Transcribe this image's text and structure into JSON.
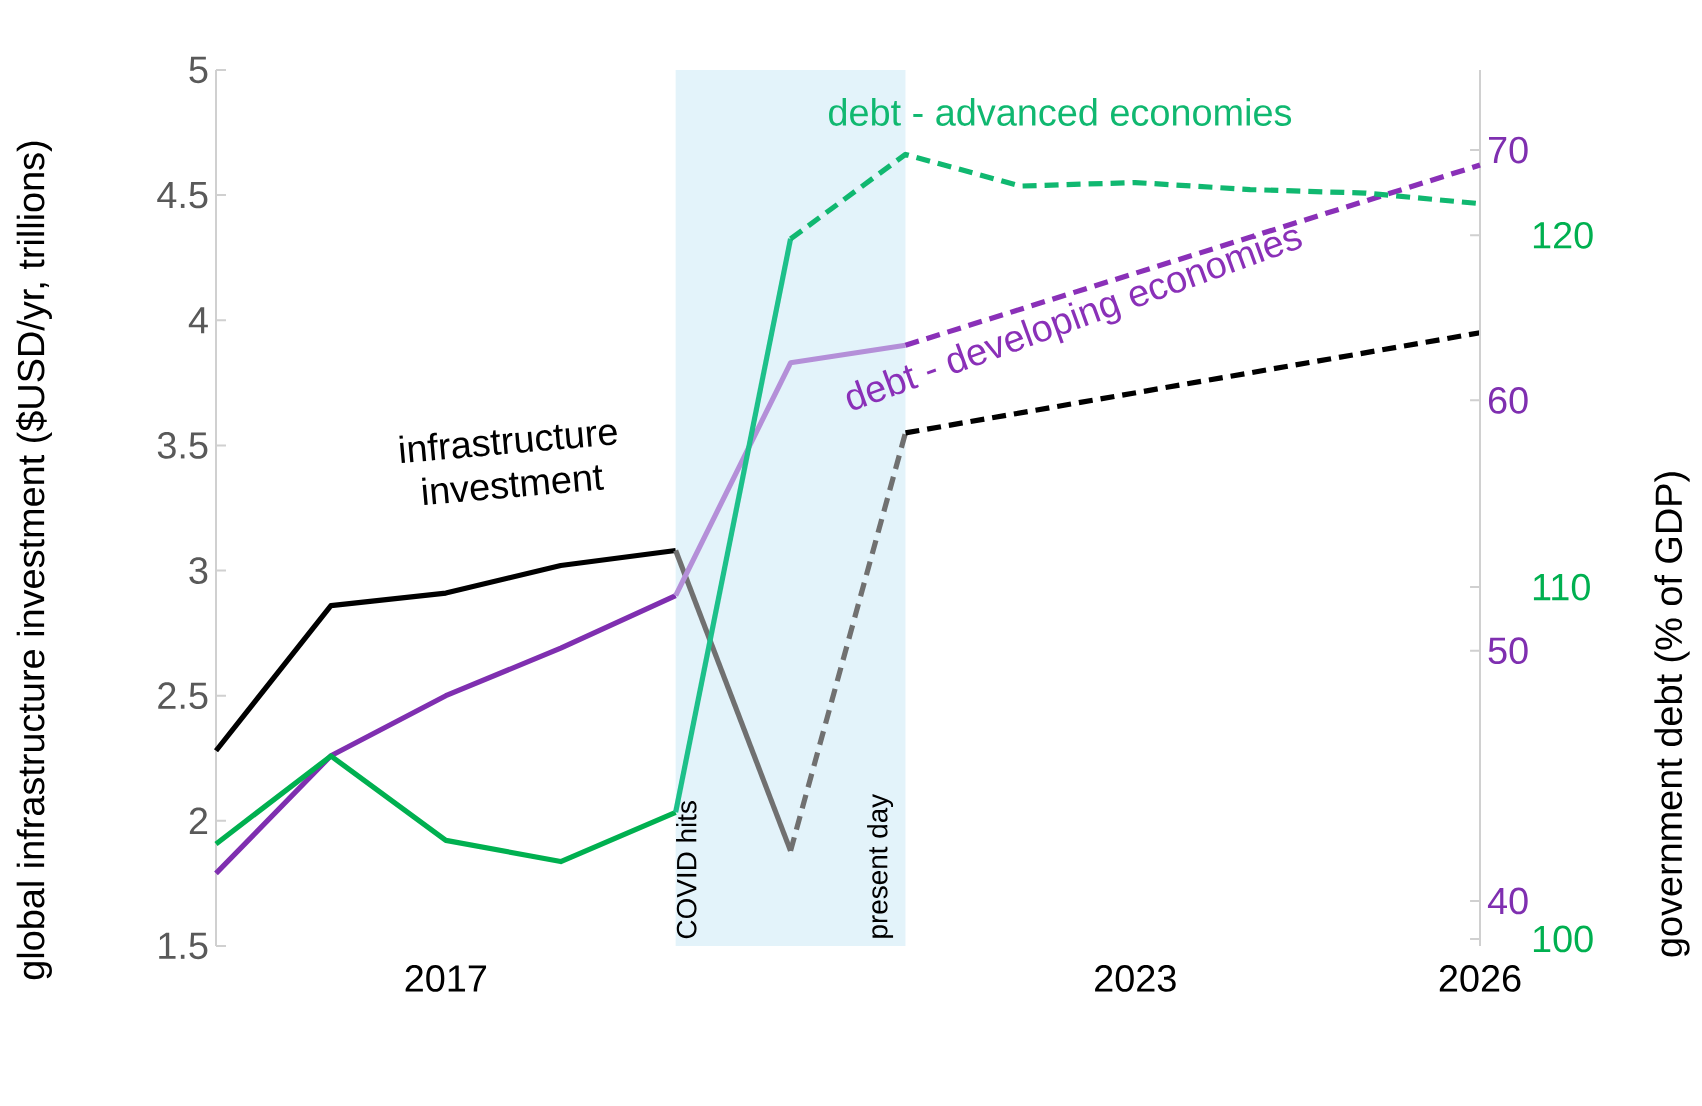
{
  "chart_data": {
    "type": "line",
    "ylabel": "global infrastructure investment ($USD/yr, trillions)",
    "y2label": "government debt (% of GDP)",
    "xlim": [
      2015,
      2026
    ],
    "xticks": [
      2017,
      2023,
      2026
    ],
    "ylim": [
      1.5,
      5
    ],
    "yticks": [
      1.5,
      2,
      2.5,
      3,
      3.5,
      4,
      4.5,
      5
    ],
    "y2lim": [
      38.2,
      73.2
    ],
    "y2ticks": [
      40,
      50,
      60,
      70
    ],
    "y3lim": [
      99.8,
      124.7
    ],
    "y3ticks": [
      100,
      110,
      120
    ],
    "bands": [
      {
        "axis": "x",
        "from": 2019,
        "to": 2021,
        "color": "#e3f3fa"
      }
    ],
    "annotations": [
      {
        "text": "COVID hits",
        "x": 2019
      },
      {
        "text": "present day",
        "x": 2021
      }
    ],
    "series": [
      {
        "name": "infrastructure investment",
        "color": "#000000",
        "x": [
          2015,
          2016,
          2017,
          2018,
          2019
        ],
        "values": [
          2.28,
          2.86,
          2.91,
          3.02,
          3.08
        ],
        "line_style": "solid"
      },
      {
        "color": "#707070",
        "x": [
          2019,
          2020
        ],
        "values": [
          3.08,
          1.88
        ],
        "line_style": "solid"
      },
      {
        "color": "#707070",
        "x": [
          2020,
          2021
        ],
        "values": [
          1.88,
          3.55
        ],
        "line_style": "dashed"
      },
      {
        "color": "#000000",
        "x": [
          2021,
          2026
        ],
        "values": [
          3.55,
          3.95
        ],
        "line_style": "dashed"
      },
      {
        "color": "#7f2fb0",
        "x": [
          2015,
          2016,
          2017,
          2018,
          2019
        ],
        "values": [
          41.1,
          45.8,
          48.2,
          50.1,
          52.2
        ],
        "line_style": "solid",
        "axis": "y2"
      },
      {
        "color": "#b48fd8",
        "x": [
          2019,
          2020,
          2021
        ],
        "values": [
          52.2,
          61.5,
          62.2
        ],
        "line_style": "solid",
        "axis": "y2"
      },
      {
        "name": "debt - developing economies",
        "color": "#8a30b8",
        "x": [
          2021,
          2026
        ],
        "values": [
          62.2,
          69.4
        ],
        "line_style": "dashed",
        "axis": "y2"
      },
      {
        "color": "#00b050",
        "x": [
          2015,
          2016,
          2017,
          2018,
          2019
        ],
        "values": [
          102.7,
          105.2,
          102.8,
          102.2,
          103.6
        ],
        "line_style": "solid",
        "axis": "y3"
      },
      {
        "color": "#1dc08a",
        "x": [
          2019,
          2020
        ],
        "values": [
          103.6,
          119.9
        ],
        "line_style": "solid",
        "axis": "y3"
      },
      {
        "name": "debt - advanced economies",
        "color": "#10b870",
        "x": [
          2020,
          2021,
          2022,
          2023,
          2024,
          2025,
          2026
        ],
        "values": [
          119.9,
          122.3,
          121.4,
          121.5,
          121.3,
          121.2,
          120.9
        ],
        "line_style": "dashed",
        "axis": "y3"
      }
    ]
  }
}
